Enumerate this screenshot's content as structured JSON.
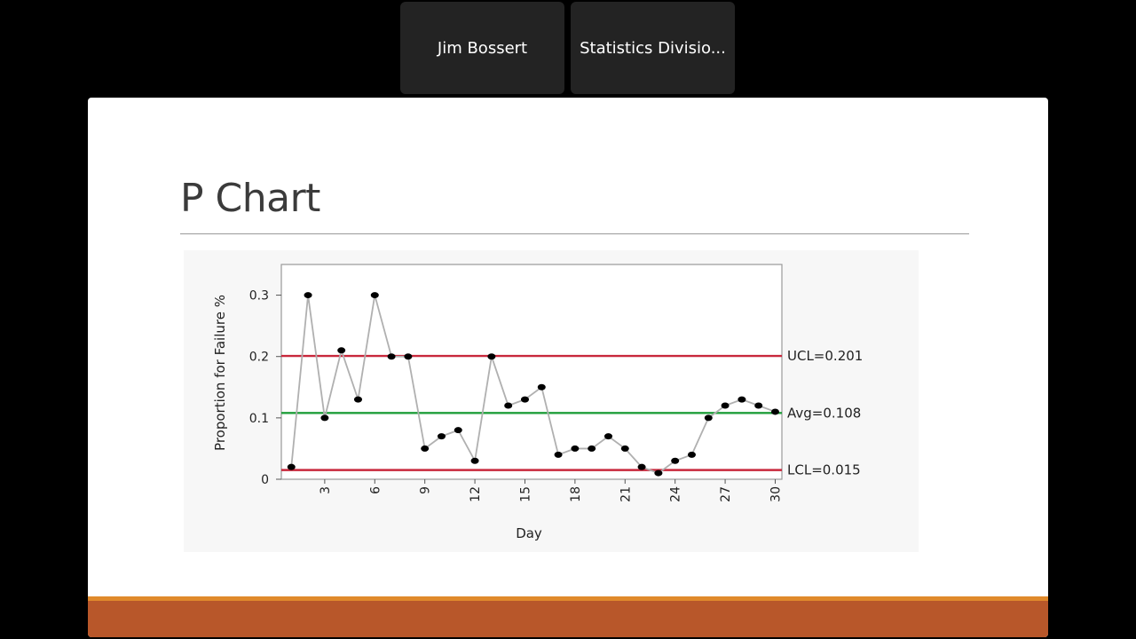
{
  "participants": [
    {
      "name": "Jim Bossert"
    },
    {
      "name": "Statistics Divisio..."
    }
  ],
  "slide": {
    "title": "P Chart"
  },
  "colors": {
    "background": "#000000",
    "tile": "#232323",
    "control_limit": "#c8283c",
    "average": "#1f9e3a",
    "series_line": "#b0b0b0",
    "point": "#000000",
    "footer_accent": "#e08a2c",
    "footer_band": "#b8572a"
  },
  "chart_data": {
    "type": "line",
    "title": "",
    "xlabel": "Day",
    "ylabel": "Proportion for Failure %",
    "x": [
      1,
      2,
      3,
      4,
      5,
      6,
      7,
      8,
      9,
      10,
      11,
      12,
      13,
      14,
      15,
      16,
      17,
      18,
      19,
      20,
      21,
      22,
      23,
      24,
      25,
      26,
      27,
      28,
      29,
      30
    ],
    "y": [
      0.02,
      0.3,
      0.1,
      0.21,
      0.13,
      0.3,
      0.2,
      0.2,
      0.05,
      0.07,
      0.08,
      0.03,
      0.2,
      0.12,
      0.13,
      0.15,
      0.04,
      0.05,
      0.05,
      0.07,
      0.05,
      0.02,
      0.01,
      0.03,
      0.04,
      0.1,
      0.12,
      0.13,
      0.12,
      0.11
    ],
    "xlim": [
      0.4,
      30.4
    ],
    "ylim": [
      0,
      0.35
    ],
    "x_ticks": [
      "3",
      "6",
      "9",
      "12",
      "15",
      "18",
      "21",
      "24",
      "27",
      "30"
    ],
    "y_ticks": [
      "0",
      "0.1",
      "0.2",
      "0.3"
    ],
    "reference_lines": [
      {
        "label": "UCL=0.201",
        "value": 0.201,
        "color": "#c8283c"
      },
      {
        "label": "Avg=0.108",
        "value": 0.108,
        "color": "#1f9e3a"
      },
      {
        "label": "LCL=0.015",
        "value": 0.015,
        "color": "#c8283c"
      }
    ],
    "grid": false,
    "legend": "none"
  }
}
